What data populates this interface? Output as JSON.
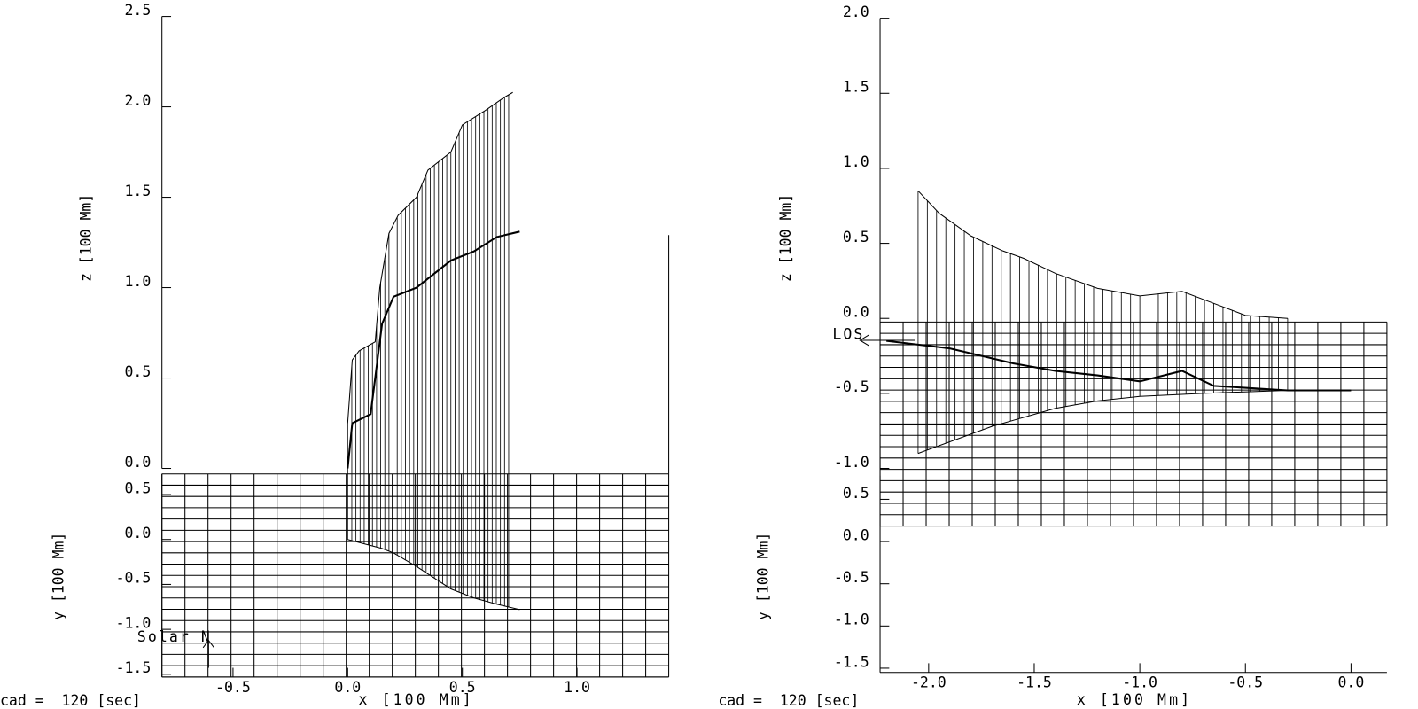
{
  "chart_data": [
    {
      "type": "line",
      "xlabel": "x [100 Mm]",
      "zlabel": "z [100 Mm]",
      "ylabel": "y [100 Mm]",
      "note": "Solar N",
      "caption": "cad =  120 [sec]",
      "xlim": [
        -0.81,
        1.4
      ],
      "xticks": [
        -0.5,
        {
          "value": 0,
          "label": "0.0"
        },
        0.5,
        {
          "value": 1,
          "label": "1.0"
        }
      ],
      "zlim": [
        0,
        2.5
      ],
      "zticks": [
        {
          "value": 0,
          "label": "0.0"
        },
        0.5,
        {
          "value": 1,
          "label": "1.0"
        },
        1.5,
        {
          "value": 2,
          "label": "2.0"
        },
        2.5
      ],
      "ylim": [
        -1.53,
        0.73
      ],
      "yticks": [
        0.5,
        {
          "value": 0,
          "label": "0.0"
        },
        -0.5,
        {
          "value": -1,
          "label": "-1.0"
        },
        -1.5
      ],
      "series": [
        {
          "axis": "z",
          "color": "#000000",
          "x": [
            0,
            0.02,
            0.05,
            0.12,
            0.14,
            0.18,
            0.22,
            0.3,
            0.35,
            0.45,
            0.5,
            0.6,
            0.68,
            0.72
          ],
          "values": [
            0.25,
            0.6,
            0.65,
            0.7,
            1.0,
            1.3,
            1.4,
            1.5,
            1.65,
            1.75,
            1.9,
            1.98,
            2.05,
            2.08
          ]
        },
        {
          "axis": "z",
          "color": "#000000",
          "x": [
            0,
            0.02,
            0.1,
            0.15,
            0.2,
            0.3,
            0.45,
            0.55,
            0.65,
            0.75
          ],
          "values": [
            0.0,
            0.25,
            0.3,
            0.8,
            0.95,
            1.0,
            1.15,
            1.2,
            1.28,
            1.31
          ]
        },
        {
          "axis": "y",
          "color": "#000000",
          "x": [
            0,
            0.15,
            0.2,
            0.3,
            0.45,
            0.55,
            0.65,
            0.75
          ],
          "values": [
            0.0,
            -0.1,
            -0.15,
            -0.3,
            -0.55,
            -0.65,
            -0.72,
            -0.78
          ]
        }
      ]
    },
    {
      "type": "line",
      "xlabel": "x [100 Mm]",
      "zlabel": "z [100 Mm]",
      "ylabel": "y [100 Mm]",
      "note": "LOS",
      "caption": "cad =  120 [sec]",
      "xlim": [
        -2.23,
        0.17
      ],
      "xticks": [
        {
          "value": -2,
          "label": "-2.0"
        },
        -1.5,
        {
          "value": -1,
          "label": "-1.0"
        },
        -0.5,
        {
          "value": 0,
          "label": "0.0"
        }
      ],
      "zlim": [
        -1,
        2
      ],
      "zticks": [
        {
          "value": -1,
          "label": "-1.0"
        },
        -0.5,
        {
          "value": 0,
          "label": "0.0"
        },
        0.5,
        {
          "value": 1,
          "label": "1.0"
        },
        1.5,
        {
          "value": 2,
          "label": "2.0"
        }
      ],
      "ylim": [
        -1.55,
        0.78
      ],
      "yticks": [
        0.5,
        {
          "value": 0,
          "label": "0.0"
        },
        -0.5,
        {
          "value": -1,
          "label": "-1.0"
        },
        -1.5
      ],
      "series": [
        {
          "axis": "z",
          "color": "#000000",
          "x": [
            -2.05,
            -1.95,
            -1.8,
            -1.65,
            -1.55,
            -1.4,
            -1.2,
            -1.0,
            -0.8,
            -0.65,
            -0.5,
            -0.3
          ],
          "values": [
            0.85,
            0.7,
            0.55,
            0.45,
            0.4,
            0.3,
            0.2,
            0.15,
            0.18,
            0.1,
            0.02,
            0.0
          ]
        },
        {
          "axis": "z",
          "color": "#000000",
          "x": [
            -2.2,
            -1.9,
            -1.6,
            -1.4,
            -1.2,
            -1.0,
            -0.8,
            -0.65,
            -0.3,
            0.0
          ],
          "values": [
            -0.15,
            -0.2,
            -0.3,
            -0.35,
            -0.38,
            -0.42,
            -0.35,
            -0.45,
            -0.48,
            -0.48
          ]
        },
        {
          "axis": "z",
          "color": "#000000",
          "x": [
            -2.05,
            -1.7,
            -1.4,
            -1.2,
            -1.0,
            -0.7,
            -0.3,
            0.0
          ],
          "values": [
            -0.9,
            -0.72,
            -0.6,
            -0.55,
            -0.52,
            -0.5,
            -0.48,
            -0.48
          ]
        }
      ]
    }
  ]
}
